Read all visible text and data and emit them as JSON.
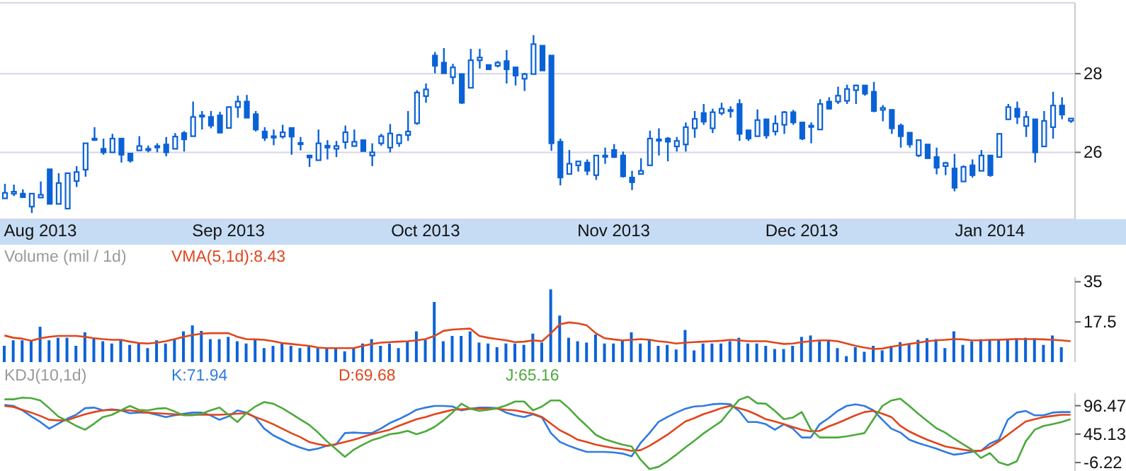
{
  "chart_data": [
    {
      "type": "candlestick",
      "color": "#0b62d6",
      "ylim": [
        24.3,
        29.8
      ],
      "yticks": [
        26,
        28
      ],
      "grid": "y",
      "categories": [
        null,
        null,
        null,
        null,
        "Aug 2013",
        null,
        null,
        null,
        null,
        null,
        null,
        null,
        null,
        null,
        null,
        null,
        null,
        null,
        null,
        null,
        null,
        null,
        null,
        null,
        null,
        "Sep 2013",
        null,
        null,
        null,
        null,
        null,
        null,
        null,
        null,
        null,
        null,
        null,
        null,
        null,
        null,
        null,
        null,
        null,
        null,
        null,
        null,
        null,
        "Oct 2013",
        null,
        null,
        null,
        null,
        null,
        null,
        null,
        null,
        null,
        null,
        null,
        null,
        null,
        null,
        null,
        null,
        null,
        null,
        null,
        null,
        "Nov 2013",
        null,
        null,
        null,
        null,
        null,
        null,
        null,
        null,
        null,
        null,
        null,
        null,
        null,
        null,
        null,
        null,
        null,
        null,
        null,
        null,
        "Dec 2013",
        null,
        null,
        null,
        null,
        null,
        null,
        null,
        null,
        null,
        null,
        null,
        null,
        null,
        null,
        null,
        null,
        null,
        null,
        null,
        null,
        "Jan 2014",
        null,
        null,
        null,
        null,
        null,
        null,
        null,
        null,
        null
      ],
      "ohlc": [
        [
          24.83,
          25.2,
          24.83,
          24.97
        ],
        [
          24.95,
          25.18,
          24.89,
          25.0
        ],
        [
          24.95,
          25.06,
          24.85,
          24.86
        ],
        [
          24.62,
          24.95,
          24.46,
          24.95
        ],
        [
          24.85,
          25.26,
          24.85,
          24.92
        ],
        [
          25.57,
          25.57,
          24.69,
          24.69
        ],
        [
          24.69,
          25.47,
          24.69,
          25.22
        ],
        [
          24.57,
          25.47,
          24.57,
          25.47
        ],
        [
          25.27,
          25.65,
          25.12,
          25.5
        ],
        [
          25.56,
          26.23,
          25.38,
          26.23
        ],
        [
          26.33,
          26.64,
          26.29,
          26.35
        ],
        [
          26.09,
          26.35,
          25.94,
          26.0
        ],
        [
          26.0,
          26.47,
          26.0,
          26.35
        ],
        [
          26.35,
          26.35,
          25.74,
          25.94
        ],
        [
          25.97,
          25.97,
          25.74,
          25.79
        ],
        [
          26.05,
          26.41,
          26.05,
          26.16
        ],
        [
          26.07,
          26.17,
          26.0,
          26.09
        ],
        [
          26.14,
          26.23,
          26.0,
          26.16
        ],
        [
          26.2,
          26.39,
          25.9,
          26.0
        ],
        [
          26.09,
          26.49,
          26.09,
          26.4
        ],
        [
          26.49,
          26.54,
          26.02,
          26.33
        ],
        [
          26.41,
          27.29,
          26.41,
          26.9
        ],
        [
          26.92,
          27.05,
          26.58,
          26.94
        ],
        [
          26.9,
          27.05,
          26.61,
          26.68
        ],
        [
          26.94,
          27.03,
          26.5,
          26.5
        ],
        [
          26.62,
          27.17,
          26.62,
          27.15
        ],
        [
          27.15,
          27.44,
          26.88,
          27.29
        ],
        [
          27.29,
          27.46,
          26.88,
          26.88
        ],
        [
          26.97,
          27.05,
          26.53,
          26.58
        ],
        [
          26.53,
          26.64,
          26.29,
          26.37
        ],
        [
          26.41,
          26.58,
          26.18,
          26.41
        ],
        [
          26.4,
          26.7,
          26.35,
          26.51
        ],
        [
          26.62,
          26.62,
          25.94,
          26.4
        ],
        [
          26.24,
          26.39,
          26.05,
          26.24
        ],
        [
          25.92,
          25.92,
          25.63,
          25.87
        ],
        [
          25.8,
          26.58,
          25.8,
          26.23
        ],
        [
          26.17,
          26.31,
          25.82,
          26.12
        ],
        [
          26.09,
          26.29,
          25.88,
          26.16
        ],
        [
          26.26,
          26.68,
          26.09,
          26.51
        ],
        [
          26.16,
          26.58,
          26.14,
          26.27
        ],
        [
          26.31,
          26.31,
          26.03,
          26.03
        ],
        [
          25.92,
          26.23,
          25.65,
          26.0
        ],
        [
          26.23,
          26.47,
          26.17,
          26.41
        ],
        [
          26.12,
          26.72,
          26.0,
          26.48
        ],
        [
          26.23,
          26.47,
          26.14,
          26.44
        ],
        [
          26.44,
          27.05,
          26.29,
          26.53
        ],
        [
          26.74,
          27.58,
          26.7,
          27.52
        ],
        [
          27.43,
          27.75,
          27.26,
          27.6
        ],
        [
          28.46,
          28.55,
          28.01,
          28.2
        ],
        [
          28.28,
          28.65,
          28.01,
          28.01
        ],
        [
          27.91,
          28.25,
          27.73,
          28.16
        ],
        [
          27.99,
          27.99,
          27.23,
          27.26
        ],
        [
          27.64,
          28.63,
          27.64,
          28.34
        ],
        [
          28.34,
          28.63,
          28.13,
          28.41
        ],
        [
          28.22,
          28.22,
          28.11,
          28.11
        ],
        [
          28.2,
          28.32,
          28.16,
          28.28
        ],
        [
          28.32,
          28.6,
          27.75,
          28.11
        ],
        [
          28.16,
          28.16,
          27.7,
          27.95
        ],
        [
          27.87,
          28.02,
          27.56,
          27.99
        ],
        [
          27.99,
          28.98,
          27.99,
          28.75
        ],
        [
          28.71,
          28.71,
          28.08,
          28.08
        ],
        [
          28.46,
          28.46,
          26.04,
          26.23
        ],
        [
          26.27,
          26.35,
          25.16,
          25.36
        ],
        [
          25.45,
          26.06,
          25.45,
          25.71
        ],
        [
          25.67,
          25.77,
          25.51,
          25.77
        ],
        [
          25.74,
          25.82,
          25.42,
          25.53
        ],
        [
          25.42,
          25.92,
          25.3,
          25.92
        ],
        [
          25.92,
          26.12,
          25.71,
          25.92
        ],
        [
          26.06,
          26.21,
          25.86,
          25.88
        ],
        [
          25.92,
          26.02,
          25.36,
          25.39
        ],
        [
          25.36,
          25.53,
          25.04,
          25.24
        ],
        [
          25.45,
          25.85,
          25.45,
          25.53
        ],
        [
          25.67,
          26.55,
          25.67,
          26.35
        ],
        [
          26.33,
          26.61,
          25.92,
          26.33
        ],
        [
          26.35,
          26.39,
          25.77,
          26.27
        ],
        [
          26.15,
          26.39,
          26.02,
          26.29
        ],
        [
          26.2,
          26.76,
          26.02,
          26.64
        ],
        [
          26.61,
          27.05,
          26.37,
          26.85
        ],
        [
          27.0,
          27.23,
          26.7,
          26.78
        ],
        [
          26.61,
          27.11,
          26.49,
          27.02
        ],
        [
          27.0,
          27.26,
          26.94,
          27.11
        ],
        [
          27.08,
          27.17,
          26.88,
          27.08
        ],
        [
          27.23,
          27.35,
          26.29,
          26.47
        ],
        [
          26.56,
          26.56,
          26.29,
          26.35
        ],
        [
          26.41,
          27.09,
          26.41,
          26.82
        ],
        [
          26.84,
          26.84,
          26.35,
          26.43
        ],
        [
          26.53,
          26.94,
          26.43,
          26.73
        ],
        [
          26.7,
          27.05,
          26.47,
          27.02
        ],
        [
          27.02,
          27.08,
          26.7,
          26.76
        ],
        [
          26.76,
          26.76,
          26.31,
          26.35
        ],
        [
          26.68,
          26.76,
          26.23,
          26.68
        ],
        [
          26.58,
          27.35,
          26.58,
          27.23
        ],
        [
          27.29,
          27.4,
          27.09,
          27.11
        ],
        [
          27.29,
          27.67,
          27.23,
          27.44
        ],
        [
          27.31,
          27.72,
          27.23,
          27.61
        ],
        [
          27.58,
          27.72,
          27.23,
          27.7
        ],
        [
          27.7,
          27.7,
          27.44,
          27.49
        ],
        [
          27.54,
          27.79,
          27.02,
          27.05
        ],
        [
          27.08,
          27.2,
          26.79,
          27.13
        ],
        [
          27.08,
          27.08,
          26.47,
          26.61
        ],
        [
          26.68,
          26.73,
          26.12,
          26.41
        ],
        [
          26.5,
          26.5,
          26.12,
          26.2
        ],
        [
          25.92,
          26.31,
          25.88,
          26.31
        ],
        [
          26.2,
          26.2,
          25.85,
          25.85
        ],
        [
          25.88,
          26.12,
          25.44,
          25.61
        ],
        [
          25.65,
          25.76,
          25.42,
          25.73
        ],
        [
          25.59,
          25.96,
          25.01,
          25.1
        ],
        [
          25.26,
          25.67,
          25.26,
          25.63
        ],
        [
          25.67,
          25.82,
          25.36,
          25.42
        ],
        [
          25.53,
          26.06,
          25.53,
          25.92
        ],
        [
          25.92,
          25.92,
          25.38,
          25.42
        ],
        [
          25.88,
          26.49,
          25.88,
          26.47
        ],
        [
          26.84,
          27.23,
          26.84,
          27.15
        ],
        [
          27.11,
          27.29,
          26.72,
          26.9
        ],
        [
          26.67,
          27.05,
          26.39,
          26.9
        ],
        [
          26.84,
          26.84,
          25.74,
          26.0
        ],
        [
          26.15,
          27.05,
          26.15,
          26.8
        ],
        [
          26.64,
          27.54,
          26.35,
          27.19
        ],
        [
          27.19,
          27.4,
          26.84,
          26.96
        ],
        [
          26.8,
          26.86,
          26.75,
          26.86
        ]
      ]
    },
    {
      "type": "bar",
      "title": "Volume (mil / 1d)",
      "legend": "top",
      "tick_labels": "y",
      "ylim": [
        0,
        37
      ],
      "yticks": [
        17.5,
        35
      ],
      "categories": [
        null,
        null,
        null,
        null,
        null,
        null,
        null,
        null,
        null,
        null,
        null,
        null,
        null,
        null,
        null,
        null,
        null,
        null,
        null,
        null,
        null,
        null,
        null,
        null,
        null,
        null,
        null,
        null,
        null,
        null,
        null,
        null,
        null,
        null,
        null,
        null,
        null,
        null,
        null,
        null,
        null,
        null,
        null,
        null,
        null,
        null,
        null,
        null,
        null,
        null,
        null,
        null,
        null,
        null,
        null,
        null,
        null,
        null,
        null,
        null,
        null,
        null,
        null,
        null,
        null,
        null,
        null,
        null,
        null,
        null,
        null,
        null,
        null,
        null,
        null,
        null,
        null,
        null,
        null,
        null,
        null,
        null,
        null,
        null,
        null,
        null,
        null,
        null,
        null,
        null,
        null,
        null,
        null,
        null,
        null,
        null,
        null,
        null,
        null,
        null,
        null,
        null,
        null,
        null,
        null,
        null,
        null,
        null,
        null,
        null,
        null,
        null,
        null,
        null,
        null,
        null,
        null,
        null,
        null,
        null
      ],
      "series": [
        {
          "color": "#0b62d6",
          "values": [
            7.1,
            9.5,
            9.5,
            9.5,
            15.4,
            9.5,
            10.6,
            10.6,
            7.1,
            13.0,
            10.6,
            9.1,
            8.1,
            9.5,
            7.5,
            8.1,
            6.1,
            9.5,
            8.1,
            10.0,
            13.4,
            16.0,
            13.6,
            10.0,
            10.0,
            11.0,
            9.1,
            8.1,
            10.0,
            6.1,
            7.1,
            8.1,
            7.1,
            6.1,
            7.1,
            6.1,
            6.1,
            6.1,
            4.7,
            6.1,
            8.1,
            10.0,
            7.1,
            8.1,
            6.1,
            9.1,
            13.4,
            9.7,
            26.2,
            9.1,
            11.4,
            11.4,
            13.4,
            8.5,
            8.1,
            6.5,
            8.1,
            8.1,
            7.5,
            12.4,
            8.5,
            31.7,
            20.3,
            10.6,
            9.1,
            8.5,
            12.0,
            8.1,
            8.1,
            9.7,
            13.0,
            8.1,
            10.0,
            7.1,
            7.5,
            5.5,
            14.0,
            5.1,
            8.1,
            8.1,
            8.1,
            9.1,
            10.6,
            8.1,
            8.1,
            7.1,
            5.7,
            5.7,
            7.1,
            11.0,
            11.6,
            9.1,
            9.7,
            6.1,
            2.6,
            6.5,
            4.5,
            7.1,
            5.1,
            7.1,
            8.7,
            8.1,
            9.7,
            10.4,
            10.0,
            6.1,
            13.4,
            7.5,
            9.1,
            10.0,
            9.7,
            10.0,
            10.0,
            10.4,
            10.6,
            10.4,
            7.5,
            11.6,
            6.5,
            null
          ]
        },
        {
          "type": "line",
          "name": "VMA(5,1d):8.43",
          "color": "#e0461c",
          "values": [
            11.6,
            10.6,
            10.2,
            9.3,
            10.4,
            11.0,
            11.4,
            11.4,
            11.4,
            11.0,
            10.4,
            10.0,
            9.7,
            9.7,
            8.9,
            8.3,
            8.1,
            8.5,
            9.1,
            10.0,
            11.0,
            11.8,
            12.4,
            12.6,
            12.6,
            12.6,
            11.0,
            10.0,
            9.9,
            9.7,
            9.1,
            8.3,
            7.9,
            7.5,
            7.1,
            6.3,
            6.1,
            6.1,
            6.1,
            6.1,
            7.1,
            7.9,
            8.5,
            8.7,
            8.9,
            9.1,
            9.5,
            10.0,
            11.4,
            13.6,
            14.2,
            14.4,
            14.6,
            11.4,
            10.6,
            10.0,
            9.5,
            8.7,
            8.9,
            9.5,
            9.1,
            12.6,
            16.5,
            17.3,
            16.9,
            16.0,
            12.6,
            10.4,
            9.9,
            9.5,
            9.7,
            10.0,
            9.7,
            9.1,
            8.7,
            8.1,
            8.5,
            8.7,
            8.9,
            9.1,
            9.3,
            9.7,
            9.5,
            9.1,
            9.1,
            9.1,
            8.5,
            7.9,
            8.1,
            8.7,
            9.1,
            9.5,
            9.5,
            9.1,
            8.1,
            7.1,
            6.3,
            5.7,
            5.9,
            6.7,
            7.3,
            7.9,
            8.5,
            9.1,
            9.5,
            9.7,
            10.0,
            9.9,
            9.5,
            9.5,
            9.7,
            9.7,
            9.9,
            10.0,
            10.0,
            10.0,
            9.9,
            9.7,
            9.5,
            9.1
          ]
        }
      ]
    },
    {
      "type": "line",
      "title": "KDJ(10,1d)",
      "legend": "top",
      "tick_labels": "y",
      "marker": "none",
      "ylim": [
        -21.5,
        119
      ],
      "yticks": [
        -6.22,
        45.13,
        96.47
      ],
      "categories": [
        null,
        null,
        null,
        null,
        null,
        null,
        null,
        null,
        null,
        null,
        null,
        null,
        null,
        null,
        null,
        null,
        null,
        null,
        null,
        null,
        null,
        null,
        null,
        null,
        null,
        null,
        null,
        null,
        null,
        null,
        null,
        null,
        null,
        null,
        null,
        null,
        null,
        null,
        null,
        null,
        null,
        null,
        null,
        null,
        null,
        null,
        null,
        null,
        null,
        null,
        null,
        null,
        null,
        null,
        null,
        null,
        null,
        null,
        null,
        null,
        null,
        null,
        null,
        null,
        null,
        null,
        null,
        null,
        null,
        null,
        null,
        null,
        null,
        null,
        null,
        null,
        null,
        null,
        null,
        null,
        null,
        null,
        null,
        null,
        null,
        null,
        null,
        null,
        null,
        null,
        null,
        null,
        null,
        null,
        null,
        null,
        null,
        null,
        null,
        null,
        null,
        null,
        null,
        null,
        null,
        null,
        null,
        null,
        null,
        null,
        null,
        null,
        null,
        null,
        null,
        null,
        null,
        null,
        null,
        null
      ],
      "series": [
        {
          "name": "K:71.94",
          "color": "#2f7be0",
          "values": [
            98,
            96,
            88,
            77,
            67,
            55,
            64,
            73,
            80,
            92,
            93,
            88,
            90,
            88,
            83,
            84,
            84,
            80,
            76,
            79,
            82,
            84,
            84,
            79,
            71,
            77,
            88,
            84,
            75,
            55,
            43,
            35,
            27,
            21,
            16,
            19,
            24,
            26,
            47,
            48,
            47,
            47,
            55,
            65,
            72,
            80,
            89,
            93,
            96,
            96,
            95,
            88,
            91,
            93,
            93,
            92,
            84,
            79,
            76,
            81,
            75,
            47,
            31,
            24,
            18,
            13,
            13,
            13,
            12,
            10,
            5,
            29,
            47,
            67,
            76,
            84,
            91,
            95,
            96,
            99,
            100,
            99,
            87,
            67,
            67,
            63,
            53,
            63,
            55,
            39,
            39,
            63,
            74,
            87,
            96,
            99,
            96,
            88,
            71,
            55,
            48,
            35,
            29,
            24,
            19,
            13,
            8,
            10,
            13,
            15,
            28,
            35,
            71,
            84,
            87,
            79,
            79,
            84,
            85,
            85
          ]
        },
        {
          "name": "D:69.68",
          "color": "#e0461c",
          "values": [
            96,
            94,
            89,
            84,
            78,
            71,
            70,
            70,
            76,
            81,
            85,
            88,
            89,
            88,
            88,
            86,
            84,
            83,
            82,
            81,
            80,
            80,
            80,
            80,
            80,
            81,
            82,
            83,
            76,
            70,
            63,
            55,
            47,
            40,
            31,
            27,
            24,
            27,
            31,
            35,
            40,
            45,
            49,
            53,
            60,
            66,
            72,
            76,
            81,
            85,
            89,
            90,
            91,
            91,
            91,
            91,
            89,
            88,
            85,
            82,
            76,
            64,
            52,
            44,
            35,
            31,
            26,
            23,
            20,
            18,
            15,
            16,
            24,
            34,
            44,
            56,
            68,
            74,
            81,
            86,
            92,
            96,
            92,
            87,
            80,
            72,
            68,
            63,
            58,
            53,
            50,
            51,
            59,
            65,
            72,
            79,
            85,
            87,
            82,
            76,
            60,
            50,
            42,
            35,
            29,
            23,
            20,
            17,
            15,
            15,
            22,
            32,
            44,
            56,
            68,
            72,
            76,
            78,
            80,
            80
          ]
        },
        {
          "name": "J:65.16",
          "color": "#4caa3c",
          "values": [
            108,
            108,
            111,
            110,
            106,
            92,
            77,
            69,
            60,
            53,
            64,
            76,
            80,
            88,
            96,
            89,
            88,
            91,
            92,
            86,
            79,
            79,
            82,
            88,
            93,
            80,
            67,
            83,
            95,
            103,
            100,
            92,
            82,
            72,
            62,
            48,
            32,
            18,
            4,
            17,
            26,
            34,
            39,
            45,
            47,
            51,
            45,
            50,
            58,
            70,
            84,
            100,
            91,
            87,
            89,
            92,
            97,
            104,
            104,
            88,
            95,
            106,
            106,
            92,
            75,
            60,
            44,
            36,
            31,
            26,
            23,
            -1,
            -18,
            -14,
            -4,
            8,
            21,
            33,
            46,
            57,
            68,
            88,
            107,
            113,
            101,
            100,
            87,
            72,
            75,
            85,
            54,
            39,
            39,
            39,
            41,
            44,
            47,
            72,
            96,
            106,
            109,
            96,
            82,
            69,
            56,
            48,
            37,
            27,
            17,
            2,
            11,
            -6,
            -11,
            -4,
            32,
            53,
            60,
            63,
            67,
            72
          ]
        }
      ]
    }
  ]
}
